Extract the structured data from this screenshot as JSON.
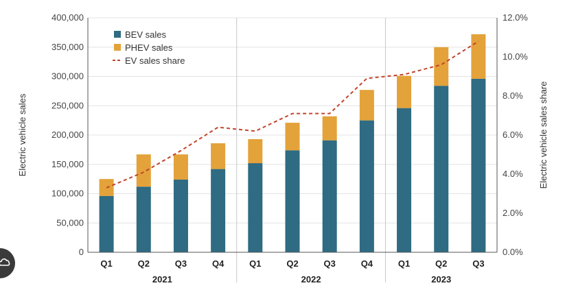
{
  "colors": {
    "bev": "#2f6b82",
    "phev": "#e3a23a",
    "share": "#c2432a",
    "grid": "#e3e3e3",
    "separator": "#c8c8c8",
    "axis": "#555555"
  },
  "left_axis_title": "Electric vehicle sales",
  "right_axis_title": "Electric vehicle sales share",
  "legend": {
    "bev": "BEV sales",
    "phev": "PHEV sales",
    "share": "EV sales share"
  },
  "years": [
    "2021",
    "2022",
    "2023"
  ],
  "corner_icon": "cloud-icon",
  "chart_data": {
    "type": "bar",
    "stacked": true,
    "title": "",
    "categories": [
      "Q1",
      "Q2",
      "Q3",
      "Q4",
      "Q1",
      "Q2",
      "Q3",
      "Q4",
      "Q1",
      "Q2",
      "Q3"
    ],
    "groups": [
      {
        "name": "2021",
        "count": 4
      },
      {
        "name": "2022",
        "count": 4
      },
      {
        "name": "2023",
        "count": 3
      }
    ],
    "series": [
      {
        "name": "BEV sales",
        "kind": "bar",
        "axis": "left",
        "values": [
          96000,
          112000,
          124000,
          142000,
          152000,
          174000,
          191000,
          225000,
          246000,
          284000,
          296000
        ]
      },
      {
        "name": "PHEV sales",
        "kind": "bar",
        "axis": "left",
        "values": [
          29000,
          55000,
          43000,
          44000,
          41000,
          47000,
          41000,
          52000,
          55000,
          66000,
          76000
        ]
      },
      {
        "name": "EV sales share",
        "kind": "line",
        "style": "dashed",
        "axis": "right",
        "values": [
          3.3,
          4.1,
          5.2,
          6.4,
          6.2,
          7.1,
          7.1,
          8.9,
          9.1,
          9.6,
          10.8
        ]
      }
    ],
    "ylabel": "Electric vehicle sales",
    "ylim": [
      0,
      400000
    ],
    "yticks": [
      "0",
      "50,000",
      "100,000",
      "150,000",
      "200,000",
      "250,000",
      "300,000",
      "350,000",
      "400,000"
    ],
    "y2label": "Electric vehicle sales share",
    "y2lim": [
      0,
      12
    ],
    "y2ticks": [
      "0.0%",
      "2.0%",
      "4.0%",
      "6.0%",
      "8.0%",
      "10.0%",
      "12.0%"
    ],
    "grid": true,
    "legend_position": "top-left"
  }
}
